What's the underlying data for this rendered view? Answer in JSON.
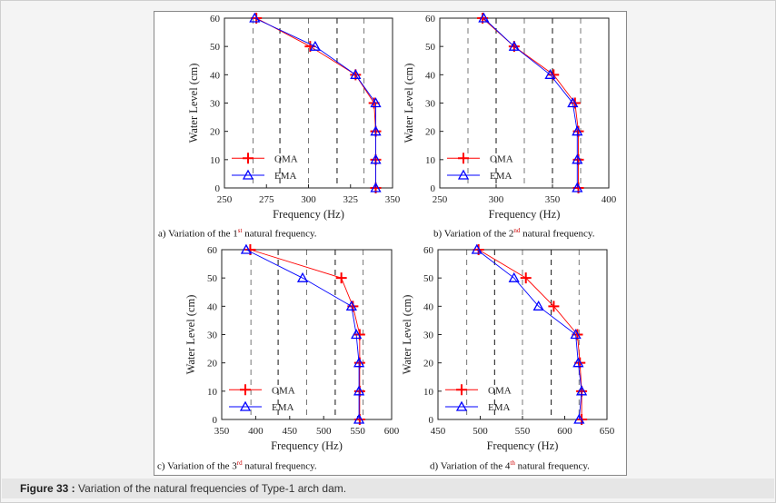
{
  "figure_caption": {
    "label": "Figure 33 :",
    "text": " Variation of the natural frequencies of Type-1 arch dam."
  },
  "colors": {
    "oma": "#ff0000",
    "ema": "#0000ff"
  },
  "subcaptions": [
    {
      "pre": "a) Variation of the 1",
      "sup": "st",
      "post": " natural frequency."
    },
    {
      "pre": "b) Variation of the 2",
      "sup": "nd",
      "post": " natural frequency."
    },
    {
      "pre": "c) Variation of the 3",
      "sup": "rd",
      "post": " natural frequency."
    },
    {
      "pre": "d) Variation of the 4",
      "sup": "th",
      "post": " natural frequency."
    }
  ],
  "chart_data": [
    {
      "type": "line",
      "xlabel": "Frequency (Hz)",
      "ylabel": "Water Level (cm)",
      "xlim": [
        250,
        350
      ],
      "ylim": [
        0,
        60
      ],
      "xticks": [
        250,
        275,
        300,
        325,
        350
      ],
      "yticks": [
        0,
        10,
        20,
        30,
        40,
        50,
        60
      ],
      "vlines": [
        267,
        283,
        300,
        317,
        333
      ],
      "legend": "bottom-left",
      "y": [
        60,
        50,
        40,
        30,
        20,
        10,
        0
      ],
      "series": [
        {
          "name": "OMA",
          "marker": "plus",
          "x": [
            269,
            301,
            328,
            339,
            340,
            340,
            340
          ]
        },
        {
          "name": "EMA",
          "marker": "triangle",
          "x": [
            268,
            304,
            328,
            340,
            340,
            340,
            340
          ]
        }
      ]
    },
    {
      "type": "line",
      "xlabel": "Frequency (Hz)",
      "ylabel": "Water Level (cm)",
      "xlim": [
        250,
        400
      ],
      "ylim": [
        0,
        60
      ],
      "xticks": [
        250,
        300,
        350,
        400
      ],
      "yticks": [
        0,
        10,
        20,
        30,
        40,
        50,
        60
      ],
      "vlines": [
        275,
        300,
        325,
        350,
        375
      ],
      "legend": "bottom-left",
      "y": [
        60,
        50,
        40,
        30,
        20,
        10,
        0
      ],
      "series": [
        {
          "name": "OMA",
          "marker": "plus",
          "x": [
            288,
            316,
            351,
            370,
            373,
            373,
            373
          ]
        },
        {
          "name": "EMA",
          "marker": "triangle",
          "x": [
            289,
            316,
            348,
            368,
            372,
            372,
            372
          ]
        }
      ]
    },
    {
      "type": "line",
      "xlabel": "Frequency (Hz)",
      "ylabel": "Water Level (cm)",
      "xlim": [
        350,
        600
      ],
      "ylim": [
        0,
        60
      ],
      "xticks": [
        350,
        400,
        450,
        500,
        550,
        600
      ],
      "yticks": [
        0,
        10,
        20,
        30,
        40,
        50,
        60
      ],
      "vlines": [
        393,
        433,
        475,
        517,
        558
      ],
      "legend": "bottom-left",
      "y": [
        60,
        50,
        40,
        30,
        20,
        10,
        0
      ],
      "series": [
        {
          "name": "OMA",
          "marker": "plus",
          "x": [
            392,
            526,
            543,
            553,
            553,
            553,
            553
          ]
        },
        {
          "name": "EMA",
          "marker": "triangle",
          "x": [
            386,
            469,
            541,
            548,
            552,
            552,
            552
          ]
        }
      ]
    },
    {
      "type": "line",
      "xlabel": "Frequency (Hz)",
      "ylabel": "Water Level (cm)",
      "xlim": [
        450,
        650
      ],
      "ylim": [
        0,
        60
      ],
      "xticks": [
        450,
        500,
        550,
        600,
        650
      ],
      "yticks": [
        0,
        10,
        20,
        30,
        40,
        50,
        60
      ],
      "vlines": [
        484,
        517,
        550,
        584,
        617
      ],
      "legend": "bottom-left",
      "y": [
        60,
        50,
        40,
        30,
        20,
        10,
        0
      ],
      "series": [
        {
          "name": "OMA",
          "marker": "plus",
          "x": [
            498,
            554,
            587,
            615,
            618,
            620,
            620
          ]
        },
        {
          "name": "EMA",
          "marker": "triangle",
          "x": [
            496,
            540,
            569,
            613,
            616,
            620,
            617
          ]
        }
      ]
    }
  ]
}
